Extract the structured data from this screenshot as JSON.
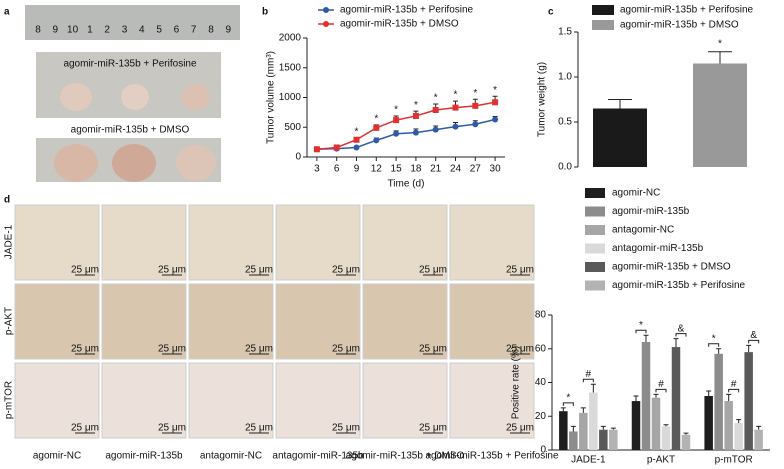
{
  "panel_labels": [
    "a",
    "b",
    "c",
    "d"
  ],
  "panel_a": {
    "ruler_labels": [
      "8",
      "9",
      "10",
      "1",
      "2",
      "3",
      "4",
      "5",
      "6",
      "7",
      "8",
      "9"
    ],
    "group_labels": [
      "agomir-miR-135b + Perifosine",
      "agomir-miR-135b + DMSO"
    ]
  },
  "panel_d_images": {
    "row_labels": [
      "JADE-1",
      "p-AKT",
      "p-mTOR"
    ],
    "column_labels": [
      "agomir-NC",
      "agomir-miR-135b",
      "antagomir-NC",
      "antagomir-miR-135b",
      "agomir-miR-135b + DMSO",
      "agomir-miR-135b + Perifosine"
    ],
    "scale_bar": "25 μm"
  },
  "chart_data": [
    {
      "type": "line",
      "x_label": "Time (d)",
      "y_label": "Tumor volume (mm³)",
      "x": [
        3,
        6,
        9,
        12,
        15,
        18,
        21,
        24,
        27,
        30
      ],
      "xlim": [
        1.5,
        31.5
      ],
      "xticks": [
        3,
        6,
        9,
        12,
        15,
        18,
        21,
        24,
        27,
        30
      ],
      "ylim": [
        0,
        2000
      ],
      "yticks": [
        0,
        500,
        1000,
        1500,
        2000
      ],
      "series": [
        {
          "name": "agomir-miR-135b + Perifosine",
          "color": "#2e5aa8",
          "values": [
            130,
            140,
            160,
            280,
            390,
            410,
            460,
            510,
            550,
            630
          ],
          "errors": [
            20,
            20,
            20,
            40,
            50,
            60,
            60,
            70,
            60,
            50
          ]
        },
        {
          "name": "agomir-miR-135b + DMSO",
          "color": "#e03030",
          "values": [
            130,
            160,
            290,
            490,
            620,
            690,
            790,
            830,
            860,
            920
          ],
          "errors": [
            20,
            20,
            30,
            50,
            70,
            80,
            100,
            110,
            110,
            100
          ]
        }
      ],
      "annotations": [
        {
          "x": 9,
          "label": "*"
        },
        {
          "x": 12,
          "label": "*"
        },
        {
          "x": 15,
          "label": "*"
        },
        {
          "x": 18,
          "label": "*"
        },
        {
          "x": 21,
          "label": "*"
        },
        {
          "x": 24,
          "label": "*"
        },
        {
          "x": 27,
          "label": "*"
        },
        {
          "x": 30,
          "label": "*"
        }
      ]
    },
    {
      "type": "bar",
      "y_label": "Tumor weight (g)",
      "ylim": [
        0,
        1.5
      ],
      "yticks": [
        {
          "value": 0,
          "label": "0.0"
        },
        {
          "value": 0.5,
          "label": "0.5"
        },
        {
          "value": 1,
          "label": "1.0"
        },
        {
          "value": 1.5,
          "label": "1.5"
        }
      ],
      "series": [
        {
          "name": "agomir-miR-135b + Perifosine",
          "color": "#1a1a1a",
          "values": [
            0.65
          ],
          "errors": [
            0.1
          ]
        },
        {
          "name": "agomir-miR-135b + DMSO",
          "color": "#999999",
          "values": [
            1.15
          ],
          "errors": [
            0.13
          ]
        }
      ],
      "annotations": [
        "*"
      ]
    },
    {
      "type": "grouped_bar",
      "y_label": "Positive rate (%)",
      "categories": [
        "JADE-1",
        "p-AKT",
        "p-mTOR"
      ],
      "ylim": [
        0,
        80
      ],
      "yticks": [
        0,
        20,
        40,
        60,
        80
      ],
      "series": [
        {
          "name": "agomir-NC",
          "color": "#1e1e1e",
          "values": [
            23,
            29,
            32
          ],
          "errors": [
            2,
            3,
            3
          ]
        },
        {
          "name": "agomir-miR-135b",
          "color": "#8c8c8c",
          "values": [
            11,
            64,
            57
          ],
          "errors": [
            3,
            4,
            3
          ]
        },
        {
          "name": "antagomir-NC",
          "color": "#a6a6a6",
          "values": [
            22,
            31,
            29
          ],
          "errors": [
            3,
            2,
            4
          ]
        },
        {
          "name": "antagomir-miR-135b",
          "color": "#d9d9d9",
          "values": [
            34,
            14,
            16
          ],
          "errors": [
            5,
            1,
            2
          ]
        },
        {
          "name": "agomir-miR-135b + DMSO",
          "color": "#5a5a5a",
          "values": [
            12,
            61,
            58
          ],
          "errors": [
            2,
            5,
            4
          ]
        },
        {
          "name": "agomir-miR-135b + Perifosine",
          "color": "#b3b3b3",
          "values": [
            12,
            9,
            12
          ],
          "errors": [
            1,
            1,
            2
          ]
        }
      ],
      "annotations": [
        "*",
        "#",
        "*",
        "#",
        "&",
        "*",
        "#",
        "&"
      ]
    }
  ]
}
